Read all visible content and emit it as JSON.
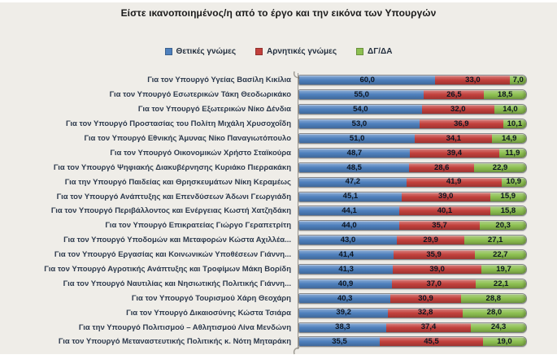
{
  "title": "Είστε ικανοποιημένος/η από το έργο και την εικόνα των Υπουργών",
  "colors": {
    "background": "#efede8",
    "positive": "#4E80BD",
    "negative": "#C2403C",
    "dk_na": "#8DC051"
  },
  "legend": {
    "items": [
      {
        "label": "Θετικές γνώμες"
      },
      {
        "label": "Αρνητικές γνώμες"
      },
      {
        "label": "ΔΓ/ΔΑ"
      }
    ]
  },
  "chart_data": {
    "type": "bar",
    "orientation": "horizontal",
    "stacked": true,
    "units": "percent",
    "xlim": [
      0,
      100
    ],
    "decimal_separator": ",",
    "legend_position": "top",
    "title": "Είστε ικανοποιημένος/η από το έργο και την εικόνα των Υπουργών",
    "categories": [
      "Για τον Υπουργό Υγείας Βασίλη Κικίλια",
      "Για τον Υπουργό Εσωτερικών Τάκη Θεοδωρικάκο",
      "Για τον Υπουργό Εξωτερικών Νίκο Δένδια",
      "Για τον Υπουργό Προστασίας του Πολίτη Μιχάλη Χρυσοχοΐδη",
      "Για τον Υπουργό Εθνικής Άμυνας Νίκο Παναγιωτόπουλο",
      "Για τον Υπουργό Οικονομικών Χρήστο Σταϊκούρα",
      "Για τον Υπουργό Ψηφιακής Διακυβέρνησης Κυριάκο Πιερρακάκη",
      "Για την Υπουργό Παιδείας και Θρησκευμάτων Νίκη Κεραμέως",
      "Για τον Υπουργό Ανάπτυξης και Επενδύσεων Άδωνι Γεωργιάδη",
      "Για τον Υπουργό Περιβάλλοντος και Ενέργειας Κωστή Χατζηδάκη",
      "Για τον Υπουργό Επικρατείας Γιώργο Γεραπετρίτη",
      "Για τον Υπουργό Υποδομών και Μεταφορών Κώστα Αχιλλέα...",
      "Για τον Υπουργό Εργασίας και Κοινωνικών Υποθέσεων Γιάννη...",
      "Για τον Υπουργό Αγροτικής Ανάπτυξης και Τροφίμων Μάκη Βορίδη",
      "Για τον Υπουργό Ναυτιλίας και Νησιωτικής Πολιτικής Γιάννη...",
      "Για τον Υπουργό Τουρισμού Χάρη Θεοχάρη",
      "Για τον Υπουργό Δικαιοσύνης Κώστα Τσιάρα",
      "Για την Υπουργό Πολιτισμού – Αθλητισμού Λίνα Μενδώνη",
      "Για τον Υπουργό Μεταναστευτικής Πολιτικής κ. Νότη Μηταράκη"
    ],
    "series": [
      {
        "name": "Θετικές γνώμες",
        "color": "#4E80BD",
        "values": [
          60.0,
          55.0,
          54.0,
          53.0,
          51.0,
          48.7,
          48.5,
          47.2,
          45.1,
          44.1,
          44.0,
          43.0,
          41.4,
          41.3,
          40.9,
          40.3,
          39.2,
          38.3,
          35.5
        ]
      },
      {
        "name": "Αρνητικές γνώμες",
        "color": "#C2403C",
        "values": [
          33.0,
          26.5,
          32.0,
          36.9,
          34.1,
          39.4,
          28.6,
          41.9,
          39.0,
          40.1,
          35.7,
          29.9,
          35.9,
          39.0,
          37.0,
          30.9,
          32.8,
          37.4,
          45.5
        ]
      },
      {
        "name": "ΔΓ/ΔΑ",
        "color": "#8DC051",
        "values": [
          7.0,
          18.5,
          14.0,
          10.1,
          14.9,
          11.9,
          22.9,
          10.9,
          15.9,
          15.8,
          20.3,
          27.1,
          22.7,
          19.7,
          22.1,
          28.8,
          28.0,
          24.3,
          19.0
        ]
      }
    ]
  }
}
